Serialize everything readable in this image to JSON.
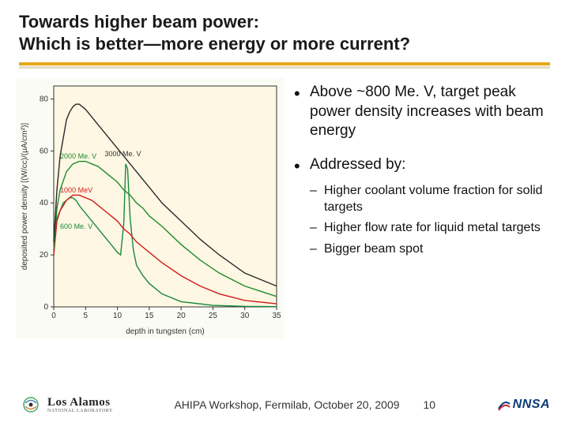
{
  "title_line1": "Towards higher beam power:",
  "title_line2": "Which is better—more energy or more current?",
  "bullet1": "Above ~800 Me. V, target peak power density increases with beam energy",
  "bullet2": "Addressed by:",
  "sub1": "Higher coolant volume fraction for solid targets",
  "sub2": "Higher flow rate for liquid metal targets",
  "sub3": "Bigger beam spot",
  "footer_text": "AHIPA Workshop, Fermilab, October 20, 2009",
  "page_num": "10",
  "lanl_big": "Los Alamos",
  "lanl_small": "NATIONAL LABORATORY",
  "nnsa_text": "NNSA",
  "chart": {
    "type": "line",
    "background_color": "#fbfbf5",
    "plot_bg": "#fdf7e3",
    "xlabel": "depth in tungsten (cm)",
    "ylabel": "deposited power density [(W/cc)/(μA/cm²)]",
    "xlim": [
      0,
      35
    ],
    "ylim": [
      0,
      85
    ],
    "xticks": [
      0,
      5,
      10,
      15,
      20,
      25,
      30,
      35
    ],
    "yticks": [
      0,
      20,
      40,
      60,
      80
    ],
    "axis_color": "#333333",
    "tick_fontsize": 10,
    "label_fontsize": 10,
    "series": [
      {
        "name": "600 Me. V",
        "label_color": "#1a8a3c",
        "line_color": "#1a8a3c",
        "line_width": 1.4,
        "label_x": 1,
        "label_y": 30,
        "data": [
          [
            0,
            20
          ],
          [
            0.5,
            34
          ],
          [
            1,
            37
          ],
          [
            1.5,
            40
          ],
          [
            2,
            41
          ],
          [
            2.5,
            42
          ],
          [
            3,
            42
          ],
          [
            3.5,
            41
          ],
          [
            4,
            39
          ],
          [
            5,
            36
          ],
          [
            6,
            33
          ],
          [
            7,
            30
          ],
          [
            8,
            27
          ],
          [
            9,
            24
          ],
          [
            10,
            21
          ],
          [
            10.5,
            20
          ],
          [
            11,
            32
          ],
          [
            11.3,
            55
          ],
          [
            11.6,
            53
          ],
          [
            12,
            34
          ],
          [
            12.5,
            22
          ],
          [
            13,
            16
          ],
          [
            14,
            12
          ],
          [
            15,
            9
          ],
          [
            17,
            5
          ],
          [
            20,
            2
          ],
          [
            25,
            0.6
          ],
          [
            30,
            0.2
          ],
          [
            35,
            0.1
          ]
        ]
      },
      {
        "name": "1000 MeV",
        "label_color": "#d11b1b",
        "line_color": "#d11b1b",
        "line_width": 1.4,
        "label_x": 1,
        "label_y": 44,
        "data": [
          [
            0,
            20
          ],
          [
            0.5,
            33
          ],
          [
            1,
            37
          ],
          [
            2,
            41
          ],
          [
            3,
            43
          ],
          [
            4,
            43
          ],
          [
            5,
            42
          ],
          [
            6,
            41
          ],
          [
            7,
            39
          ],
          [
            8,
            37
          ],
          [
            9,
            35
          ],
          [
            10,
            33
          ],
          [
            11,
            30
          ],
          [
            12,
            28
          ],
          [
            13,
            25
          ],
          [
            14,
            23
          ],
          [
            15,
            21
          ],
          [
            17,
            17
          ],
          [
            20,
            12
          ],
          [
            23,
            8
          ],
          [
            26,
            5
          ],
          [
            30,
            2.5
          ],
          [
            35,
            1.2
          ]
        ]
      },
      {
        "name": "2000 Me. V",
        "label_color": "#1f8a2f",
        "line_color": "#1f8a2f",
        "line_width": 1.4,
        "label_x": 1,
        "label_y": 57,
        "data": [
          [
            0,
            22
          ],
          [
            0.5,
            38
          ],
          [
            1,
            45
          ],
          [
            2,
            52
          ],
          [
            3,
            55
          ],
          [
            4,
            56
          ],
          [
            5,
            56
          ],
          [
            6,
            55
          ],
          [
            7,
            54
          ],
          [
            8,
            52
          ],
          [
            9,
            50
          ],
          [
            10,
            48
          ],
          [
            11,
            45
          ],
          [
            12,
            43
          ],
          [
            13,
            40
          ],
          [
            14,
            38
          ],
          [
            15,
            35
          ],
          [
            17,
            31
          ],
          [
            20,
            24
          ],
          [
            23,
            18
          ],
          [
            26,
            13
          ],
          [
            30,
            8
          ],
          [
            35,
            4
          ]
        ]
      },
      {
        "name": "3000 Me. V",
        "label_color": "#333333",
        "line_color": "#2a2a2a",
        "line_width": 1.4,
        "label_x": 8,
        "label_y": 58,
        "data": [
          [
            0,
            25
          ],
          [
            0.5,
            45
          ],
          [
            1,
            58
          ],
          [
            1.5,
            65
          ],
          [
            2,
            72
          ],
          [
            2.5,
            75
          ],
          [
            3,
            77
          ],
          [
            3.5,
            78
          ],
          [
            4,
            78
          ],
          [
            4.5,
            77
          ],
          [
            5,
            76
          ],
          [
            6,
            73
          ],
          [
            7,
            70
          ],
          [
            8,
            67
          ],
          [
            9,
            64
          ],
          [
            10,
            61
          ],
          [
            11,
            58
          ],
          [
            12,
            55
          ],
          [
            13,
            52
          ],
          [
            14,
            49
          ],
          [
            15,
            46
          ],
          [
            17,
            40
          ],
          [
            20,
            33
          ],
          [
            23,
            26
          ],
          [
            26,
            20
          ],
          [
            30,
            13
          ],
          [
            35,
            8
          ]
        ]
      }
    ]
  }
}
